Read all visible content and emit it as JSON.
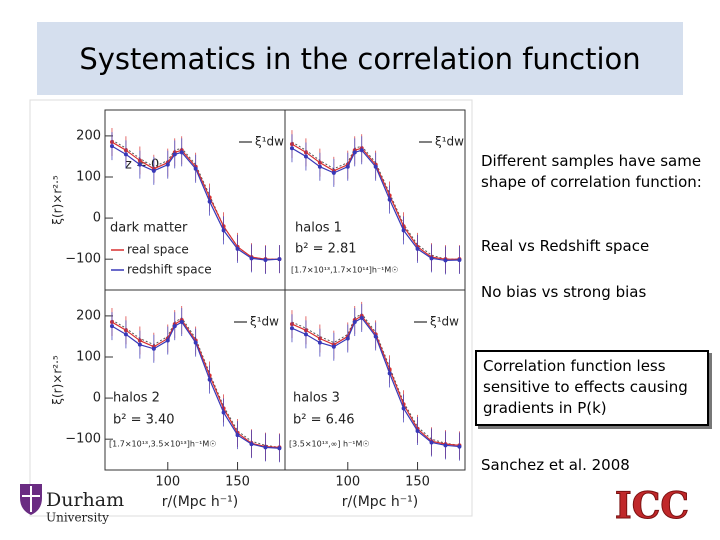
{
  "slide": {
    "title": "Systematics in the correlation function",
    "notes": [
      "Different samples have same shape of correlation function:",
      "Real vs Redshift space",
      "No bias vs strong bias"
    ],
    "boxed_note": "Correlation function less sensitive to effects causing gradients in P(k)",
    "reference": "Sanchez et al. 2008",
    "logo_left": [
      "Durham",
      "University"
    ],
    "logo_right": "ICC"
  },
  "chart_data": [
    {
      "type": "line",
      "x": [
        60,
        70,
        80,
        90,
        100,
        105,
        110,
        120,
        130,
        140,
        150,
        160,
        170,
        180
      ],
      "xlim": [
        55,
        184
      ],
      "ylim": [
        -175,
        263
      ],
      "yticks": [
        {
          "value": -100,
          "label": "−100"
        },
        0,
        100,
        200
      ],
      "ylabel": "ξ(r)×r²·⁵",
      "annotations": [
        "z = 0",
        "dark matter"
      ],
      "series": [
        {
          "name": "ξ¹dw",
          "color": "#555555",
          "values": [
            190,
            170,
            145,
            125,
            140,
            165,
            170,
            130,
            55,
            -20,
            -70,
            -95,
            -100,
            -100
          ]
        },
        {
          "name": "real space",
          "color": "#d83030",
          "values": [
            185,
            165,
            140,
            120,
            135,
            160,
            165,
            125,
            50,
            -20,
            -70,
            -95,
            -100,
            -100
          ]
        },
        {
          "name": "redshift space",
          "color": "#3838b8",
          "values": [
            175,
            155,
            130,
            115,
            130,
            155,
            160,
            120,
            40,
            -30,
            -75,
            -98,
            -102,
            -100
          ]
        }
      ]
    },
    {
      "type": "line",
      "x": [
        60,
        70,
        80,
        90,
        100,
        105,
        110,
        120,
        130,
        140,
        150,
        160,
        170,
        180
      ],
      "xlim": [
        55,
        184
      ],
      "ylim": [
        -175,
        263
      ],
      "annotations": [
        "halos 1",
        "b² = 2.81",
        "[1.7×10¹³,1.7×10¹⁴]h⁻¹M☉"
      ],
      "series": [
        {
          "name": "ξ¹dw",
          "color": "#555555",
          "values": [
            185,
            165,
            140,
            120,
            135,
            170,
            175,
            135,
            60,
            -15,
            -65,
            -90,
            -100,
            -100
          ]
        },
        {
          "color": "#d83030",
          "values": [
            180,
            160,
            135,
            115,
            130,
            165,
            170,
            130,
            55,
            -20,
            -70,
            -95,
            -100,
            -100
          ]
        },
        {
          "color": "#3838b8",
          "values": [
            170,
            150,
            125,
            110,
            125,
            160,
            165,
            125,
            45,
            -30,
            -75,
            -98,
            -103,
            -102
          ]
        }
      ]
    },
    {
      "type": "line",
      "x": [
        60,
        70,
        80,
        90,
        100,
        105,
        110,
        120,
        130,
        140,
        150,
        160,
        170,
        180
      ],
      "xlim": [
        55,
        184
      ],
      "ylim": [
        -175,
        263
      ],
      "yticks": [
        {
          "value": -100,
          "label": "−100"
        },
        0,
        100,
        200
      ],
      "ylabel": "ξ(r)×r²·⁵",
      "xticks": [
        100,
        150
      ],
      "xlabel": "r/(Mpc h⁻¹)",
      "annotations": [
        "halos 2",
        "b² = 3.40",
        "[1.7×10¹³,3.5×10¹³]h⁻¹M☉"
      ],
      "series": [
        {
          "name": "ξ¹dw",
          "color": "#555555",
          "values": [
            190,
            170,
            145,
            130,
            150,
            185,
            195,
            145,
            60,
            -20,
            -80,
            -105,
            -115,
            -120
          ]
        },
        {
          "color": "#d83030",
          "values": [
            185,
            165,
            140,
            125,
            145,
            180,
            190,
            140,
            55,
            -25,
            -85,
            -110,
            -118,
            -120
          ]
        },
        {
          "color": "#3838b8",
          "values": [
            175,
            155,
            130,
            120,
            140,
            175,
            185,
            135,
            45,
            -35,
            -90,
            -112,
            -120,
            -122
          ]
        }
      ]
    },
    {
      "type": "line",
      "x": [
        60,
        70,
        80,
        90,
        100,
        105,
        110,
        120,
        130,
        140,
        150,
        160,
        170,
        180
      ],
      "xlim": [
        55,
        184
      ],
      "ylim": [
        -175,
        263
      ],
      "xticks": [
        100,
        150
      ],
      "xlabel": "r/(Mpc h⁻¹)",
      "annotations": [
        "halos 3",
        "b² = 6.46",
        "[3.5×10¹³,∞] h⁻¹M☉"
      ],
      "series": [
        {
          "name": "ξ¹dw",
          "color": "#555555",
          "values": [
            185,
            170,
            150,
            135,
            155,
            195,
            205,
            160,
            75,
            -10,
            -70,
            -100,
            -110,
            -115
          ]
        },
        {
          "color": "#d83030",
          "values": [
            180,
            165,
            145,
            130,
            150,
            190,
            200,
            155,
            70,
            -15,
            -75,
            -105,
            -112,
            -115
          ]
        },
        {
          "color": "#3838b8",
          "values": [
            170,
            155,
            135,
            125,
            145,
            185,
            195,
            150,
            60,
            -25,
            -80,
            -108,
            -115,
            -118
          ]
        }
      ]
    }
  ]
}
